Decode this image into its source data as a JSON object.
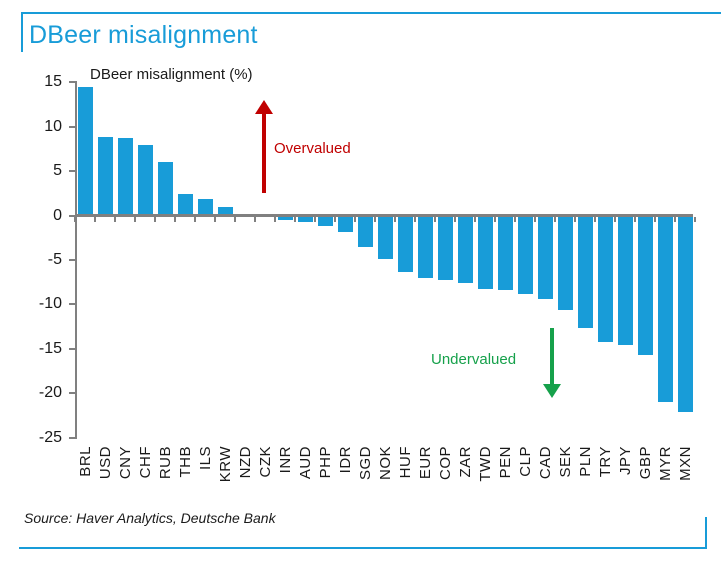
{
  "header": {
    "title": "DBeer misalignment"
  },
  "chart_data": {
    "type": "bar",
    "title": "DBeer misalignment (%)",
    "categories": [
      "BRL",
      "USD",
      "CNY",
      "CHF",
      "RUB",
      "THB",
      "ILS",
      "KRW",
      "NZD",
      "CZK",
      "INR",
      "AUD",
      "PHP",
      "IDR",
      "SGD",
      "NOK",
      "HUF",
      "EUR",
      "COP",
      "ZAR",
      "TWD",
      "PEN",
      "CLP",
      "CAD",
      "SEK",
      "PLN",
      "TRY",
      "JPY",
      "GBP",
      "MYR",
      "MXN"
    ],
    "values": [
      14.5,
      8.8,
      8.7,
      7.9,
      6.0,
      2.4,
      1.9,
      0.9,
      0.0,
      -0.1,
      -0.5,
      -0.7,
      -1.2,
      -1.9,
      -3.5,
      -4.9,
      -6.4,
      -7.0,
      -7.3,
      -7.6,
      -8.3,
      -8.4,
      -8.8,
      -9.4,
      -10.6,
      -12.7,
      -14.2,
      -14.6,
      -15.7,
      -21.0,
      -22.1
    ],
    "xlabel": "",
    "ylabel": "",
    "ylim": [
      -25,
      15
    ],
    "yticks": [
      15,
      10,
      5,
      0,
      -5,
      -10,
      -15,
      -20,
      -25
    ],
    "grid": false,
    "legend": false,
    "bar_color": "#189CD8",
    "axis_color": "#808080",
    "annotations": [
      {
        "text": "Overvalued",
        "color": "#C00000",
        "arrow": "up"
      },
      {
        "text": "Undervalued",
        "color": "#16A14B",
        "arrow": "down"
      }
    ]
  },
  "footer": {
    "source": "Source: Haver Analytics, Deutsche Bank"
  },
  "colors": {
    "accent_blue": "#189CD8",
    "axis_gray": "#808080",
    "overvalued_red": "#C00000",
    "undervalued_green": "#16A14B"
  }
}
